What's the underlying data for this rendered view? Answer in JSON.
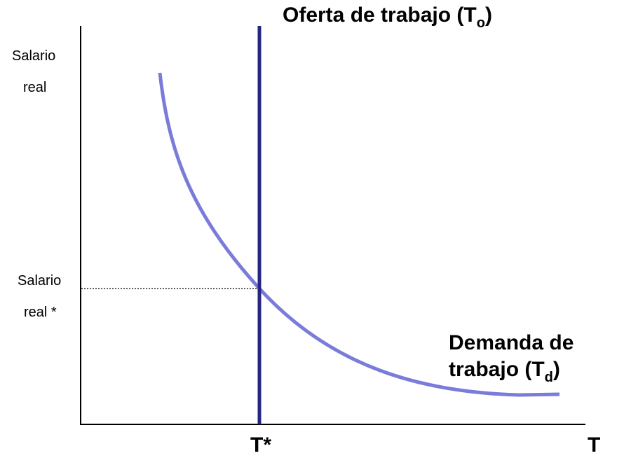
{
  "chart_data": {
    "type": "line",
    "title": "",
    "ylabel_lines": [
      "Salario",
      "real"
    ],
    "xlabel": "T",
    "equilibrium": {
      "x_label": "T*",
      "y_label_lines": [
        "Salario",
        "real *"
      ]
    },
    "series": [
      {
        "name": "Oferta de trabajo",
        "name_text": "Oferta de trabajo (T",
        "subscript": "o",
        "close": ")",
        "shape": "vertical",
        "color": "#262680"
      },
      {
        "name": "Demanda de trabajo",
        "name_line1": "Demanda de",
        "name_line2_text": "trabajo (T",
        "subscript": "d",
        "close": ")",
        "shape": "downward-sloping-convex",
        "color": "#7b7bd9"
      }
    ],
    "guide_line": "dotted",
    "grid": false
  }
}
